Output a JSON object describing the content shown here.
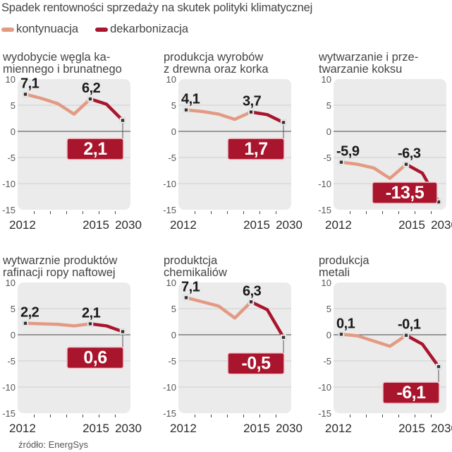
{
  "title": "Spadek rentowności sprzedaży na skutek polityki klimatycznej",
  "legend": [
    {
      "label": "kontynuacja",
      "color": "#e39a83"
    },
    {
      "label": "dekarbonizacja",
      "color": "#a8152c"
    }
  ],
  "source": "źródło: EnergSys",
  "chart_data": [
    {
      "type": "line",
      "title": "wydobycie węgla kamiennego i brunatnego",
      "title_lines": [
        "wydobycie węgla ka-",
        "miennego i brunatnego"
      ],
      "ylim": [
        -15,
        10
      ],
      "yticks": [
        10,
        5,
        0,
        -5,
        -10,
        -15
      ],
      "ytick_labels": [
        "10",
        "5",
        "0",
        "-5",
        "-10",
        "-15"
      ],
      "xtick_labels": [
        "2012",
        "2015",
        "2030"
      ],
      "grid": true,
      "series": [
        {
          "name": "kontynuacja",
          "x": [
            0,
            1,
            2,
            3,
            4
          ],
          "values": [
            7.1,
            6.3,
            5.3,
            3.3,
            6.2
          ]
        },
        {
          "name": "dekarbonizacja",
          "x": [
            4,
            5,
            6
          ],
          "values": [
            6.2,
            5.2,
            2.1
          ]
        }
      ],
      "point_labels": [
        {
          "x": 0,
          "text": "7,1"
        },
        {
          "x": 4,
          "text": "6,2"
        }
      ],
      "final_label": "2,1",
      "final_value": 2.1
    },
    {
      "type": "line",
      "title": "produkcja wyrobów z drewna oraz korka",
      "title_lines": [
        "produkcja wyrobów",
        "z drewna oraz korka"
      ],
      "ylim": [
        -15,
        10
      ],
      "yticks": [
        10,
        5,
        0,
        -5,
        -10,
        -15
      ],
      "ytick_labels": [
        "10",
        "5",
        "0",
        "-5",
        "-10",
        "-15"
      ],
      "xtick_labels": [
        "2012",
        "2015",
        "2030"
      ],
      "grid": true,
      "series": [
        {
          "name": "kontynuacja",
          "x": [
            0,
            1,
            2,
            3,
            4
          ],
          "values": [
            4.1,
            3.8,
            3.3,
            2.3,
            3.7
          ]
        },
        {
          "name": "dekarbonizacja",
          "x": [
            4,
            5,
            6
          ],
          "values": [
            3.7,
            3.2,
            1.7
          ]
        }
      ],
      "point_labels": [
        {
          "x": 0,
          "text": "4,1"
        },
        {
          "x": 4,
          "text": "3,7"
        }
      ],
      "final_label": "1,7",
      "final_value": 1.7
    },
    {
      "type": "line",
      "title": "wytwarzanie i przetwarzanie koksu",
      "title_lines": [
        "wytwarzanie i prze-",
        "twarzanie koksu"
      ],
      "ylim": [
        -15,
        10
      ],
      "yticks": [
        10,
        5,
        0,
        -5,
        -10,
        -15
      ],
      "ytick_labels": [
        "10",
        "5",
        "0",
        "-5",
        "-10",
        "-15"
      ],
      "xtick_labels": [
        "2012",
        "2015",
        "2030"
      ],
      "grid": true,
      "series": [
        {
          "name": "kontynuacja",
          "x": [
            0,
            1,
            2,
            3,
            4
          ],
          "values": [
            -5.9,
            -6.3,
            -7.0,
            -9.0,
            -6.3
          ]
        },
        {
          "name": "dekarbonizacja",
          "x": [
            4,
            5,
            6
          ],
          "values": [
            -6.3,
            -8.0,
            -13.5
          ]
        }
      ],
      "point_labels": [
        {
          "x": 0,
          "text": "-5,9"
        },
        {
          "x": 4,
          "text": "-6,3"
        }
      ],
      "final_label": "-13,5",
      "final_value": -13.5
    },
    {
      "type": "line",
      "title": "wytwarznie produktów rafinacji ropy naftowej",
      "title_lines": [
        "wytwarznie produktów",
        "rafinacji ropy naftowej"
      ],
      "ylim": [
        -15,
        10
      ],
      "yticks": [
        10,
        5,
        0,
        -5,
        -10,
        -15
      ],
      "ytick_labels": [
        "10",
        "5",
        "0",
        "-5",
        "-10",
        "-15"
      ],
      "xtick_labels": [
        "2012",
        "2015",
        "2030"
      ],
      "grid": true,
      "series": [
        {
          "name": "kontynuacja",
          "x": [
            0,
            1,
            2,
            3,
            4
          ],
          "values": [
            2.2,
            2.1,
            2.0,
            1.7,
            2.1
          ]
        },
        {
          "name": "dekarbonizacja",
          "x": [
            4,
            5,
            6
          ],
          "values": [
            2.1,
            1.7,
            0.6
          ]
        }
      ],
      "point_labels": [
        {
          "x": 0,
          "text": "2,2"
        },
        {
          "x": 4,
          "text": "2,1"
        }
      ],
      "final_label": "0,6",
      "final_value": 0.6
    },
    {
      "type": "line",
      "title": "produktcja chemikaliów",
      "title_lines": [
        "produktcja",
        "chemikaliów"
      ],
      "ylim": [
        -15,
        10
      ],
      "yticks": [
        10,
        5,
        0,
        -5,
        -10,
        -15
      ],
      "ytick_labels": [
        "10",
        "5",
        "0",
        "-5",
        "-10",
        "-15"
      ],
      "xtick_labels": [
        "2012",
        "2015",
        "2030"
      ],
      "grid": true,
      "series": [
        {
          "name": "kontynuacja",
          "x": [
            0,
            1,
            2,
            3,
            4
          ],
          "values": [
            7.1,
            6.3,
            5.5,
            3.2,
            6.3
          ]
        },
        {
          "name": "dekarbonizacja",
          "x": [
            4,
            5,
            6
          ],
          "values": [
            6.3,
            4.8,
            -0.5
          ]
        }
      ],
      "point_labels": [
        {
          "x": 0,
          "text": "7,1"
        },
        {
          "x": 4,
          "text": "6,3"
        }
      ],
      "final_label": "-0,5",
      "final_value": -0.5
    },
    {
      "type": "line",
      "title": "produkcja metali",
      "title_lines": [
        "produkcja",
        "metali"
      ],
      "ylim": [
        -15,
        10
      ],
      "yticks": [
        10,
        5,
        0,
        -5,
        -10,
        -15
      ],
      "ytick_labels": [
        "10",
        "5",
        "0",
        "-5",
        "-10",
        "-15"
      ],
      "xtick_labels": [
        "2012",
        "2015",
        "2030"
      ],
      "grid": true,
      "series": [
        {
          "name": "kontynuacja",
          "x": [
            0,
            1,
            2,
            3,
            4
          ],
          "values": [
            0.1,
            -0.2,
            -1.2,
            -2.2,
            -0.1
          ]
        },
        {
          "name": "dekarbonizacja",
          "x": [
            4,
            5,
            6
          ],
          "values": [
            -0.1,
            -1.8,
            -6.1
          ]
        }
      ],
      "point_labels": [
        {
          "x": 0,
          "text": "0,1"
        },
        {
          "x": 4,
          "text": "-0,1"
        }
      ],
      "final_label": "-6,1",
      "final_value": -6.1
    }
  ]
}
